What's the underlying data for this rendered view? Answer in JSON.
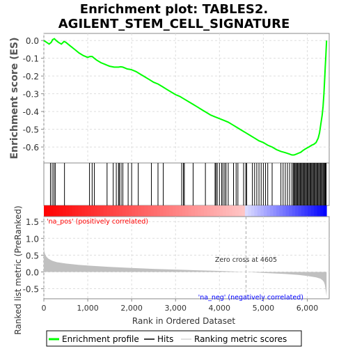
{
  "chart_data": {
    "type": "line",
    "title_line1": "Enrichment plot: TABLES2.",
    "title_line2": "AGILENT_STEM_CELL_SIGNATURE",
    "top_panel": {
      "ylabel": "Enrichment score (ES)",
      "ylim": [
        -0.69,
        0.04
      ],
      "yticks": [
        0.0,
        -0.1,
        -0.2,
        -0.3,
        -0.4,
        -0.5,
        -0.6
      ],
      "ytick_labels": [
        "0.0",
        "-0.1",
        "-0.2",
        "-0.3",
        "-0.4",
        "-0.5",
        "-0.6"
      ],
      "grid": true,
      "series_name": "Enrichment profile",
      "line_color": "#00ff00",
      "x": [
        0,
        60,
        120,
        170,
        200,
        240,
        280,
        330,
        400,
        460,
        500,
        600,
        700,
        800,
        900,
        1000,
        1050,
        1100,
        1150,
        1200,
        1300,
        1400,
        1450,
        1500,
        1600,
        1700,
        1750,
        1800,
        1850,
        1900,
        1950,
        2000,
        2100,
        2200,
        2300,
        2400,
        2500,
        2600,
        2700,
        2800,
        2900,
        3000,
        3100,
        3200,
        3300,
        3400,
        3500,
        3600,
        3700,
        3800,
        3900,
        4000,
        4100,
        4200,
        4300,
        4400,
        4500,
        4600,
        4700,
        4800,
        4900,
        5000,
        5100,
        5200,
        5300,
        5400,
        5500,
        5600,
        5650,
        5700,
        5750,
        5800,
        5850,
        5900,
        5950,
        6000,
        6050,
        6100,
        6150,
        6200,
        6250,
        6280,
        6310,
        6340,
        6360,
        6380,
        6400,
        6410,
        6420,
        6430,
        6440
      ],
      "y": [
        0.0,
        -0.01,
        -0.02,
        -0.01,
        0.005,
        0.01,
        0.0,
        -0.01,
        -0.02,
        -0.005,
        -0.01,
        -0.03,
        -0.05,
        -0.07,
        -0.085,
        -0.095,
        -0.09,
        -0.09,
        -0.1,
        -0.11,
        -0.125,
        -0.135,
        -0.14,
        -0.145,
        -0.15,
        -0.15,
        -0.148,
        -0.15,
        -0.155,
        -0.16,
        -0.162,
        -0.165,
        -0.175,
        -0.19,
        -0.205,
        -0.22,
        -0.235,
        -0.245,
        -0.26,
        -0.275,
        -0.29,
        -0.305,
        -0.315,
        -0.33,
        -0.345,
        -0.36,
        -0.375,
        -0.39,
        -0.405,
        -0.42,
        -0.43,
        -0.44,
        -0.45,
        -0.46,
        -0.475,
        -0.49,
        -0.505,
        -0.52,
        -0.535,
        -0.55,
        -0.565,
        -0.575,
        -0.59,
        -0.6,
        -0.615,
        -0.625,
        -0.632,
        -0.64,
        -0.645,
        -0.645,
        -0.64,
        -0.635,
        -0.63,
        -0.62,
        -0.612,
        -0.605,
        -0.598,
        -0.59,
        -0.585,
        -0.575,
        -0.55,
        -0.52,
        -0.47,
        -0.42,
        -0.37,
        -0.3,
        -0.2,
        -0.15,
        -0.1,
        -0.05,
        0.0
      ]
    },
    "hits_panel": {
      "series_name": "Hits",
      "hit_color": "#000000",
      "hit_positions": [
        150,
        190,
        230,
        260,
        470,
        1040,
        1100,
        1150,
        1440,
        1580,
        1650,
        1700,
        1720,
        1760,
        1800,
        1920,
        2000,
        2150,
        2450,
        2600,
        2720,
        3140,
        3180,
        3200,
        3400,
        3680,
        3900,
        3920,
        3950,
        4000,
        4050,
        4080,
        4120,
        4150,
        4200,
        4320,
        4380,
        4420,
        4550,
        4600,
        4620,
        4750,
        4800,
        4850,
        4900,
        4950,
        5000,
        5050,
        5100,
        5200,
        5400,
        5450,
        5500,
        5550,
        5600,
        5650,
        5680,
        5700,
        5720,
        5740,
        5760,
        5780,
        5800,
        5820,
        5840,
        5860,
        5880,
        5900,
        5920,
        5940,
        5960,
        5980,
        6000,
        6020,
        6040,
        6060,
        6080,
        6100,
        6120,
        6140,
        6160,
        6180,
        6200,
        6220,
        6240,
        6260,
        6280,
        6300,
        6320,
        6340,
        6360,
        6380,
        6400,
        6410,
        6420,
        6430
      ]
    },
    "bottom_panel": {
      "ylabel": "Ranked list metric (PreRanked)",
      "xlabel": "Rank in Ordered Dataset",
      "ylim": [
        -0.8,
        1.65
      ],
      "yticks": [
        -0.5,
        0.0,
        0.5,
        1.0,
        1.5
      ],
      "ytick_labels": [
        "-0.5",
        "0.0",
        "0.5",
        "1.0",
        "1.5"
      ],
      "series_name": "Ranking metric scores",
      "fill_color": "#c0c0c0",
      "x": [
        0,
        10,
        30,
        60,
        100,
        150,
        200,
        300,
        500,
        800,
        1000,
        1500,
        2000,
        2500,
        3000,
        3500,
        4000,
        4605,
        5000,
        5500,
        5800,
        6000,
        6100,
        6200,
        6300,
        6350,
        6380,
        6400,
        6420,
        6440
      ],
      "y": [
        0.78,
        0.62,
        0.52,
        0.45,
        0.4,
        0.36,
        0.33,
        0.29,
        0.25,
        0.21,
        0.19,
        0.15,
        0.12,
        0.09,
        0.07,
        0.05,
        0.03,
        0.0,
        -0.03,
        -0.06,
        -0.09,
        -0.12,
        -0.14,
        -0.16,
        -0.2,
        -0.25,
        -0.3,
        -0.38,
        -0.55,
        -0.72
      ],
      "zero_cross_label": "Zero cross at 4605",
      "zero_cross_x": 4605,
      "pos_label": "'na_pos' (positively correlated)",
      "neg_label": "'na_neg' (negatively correlated)",
      "pos_label_color": "#ff0000",
      "neg_label_color": "#0000ff"
    },
    "xlim": [
      0,
      6500
    ],
    "xticks": [
      0,
      1000,
      2000,
      3000,
      4000,
      5000,
      6000
    ],
    "xtick_labels": [
      "0",
      "1,000",
      "2,000",
      "3,000",
      "4,000",
      "5,000",
      "6,000"
    ],
    "total_genes": 6440
  },
  "legend": {
    "items": [
      {
        "label": "Enrichment profile",
        "color": "#00ff00"
      },
      {
        "label": "Hits",
        "color": "#000000"
      },
      {
        "label": "Ranking metric scores",
        "color": "#c0c0c0"
      }
    ]
  }
}
